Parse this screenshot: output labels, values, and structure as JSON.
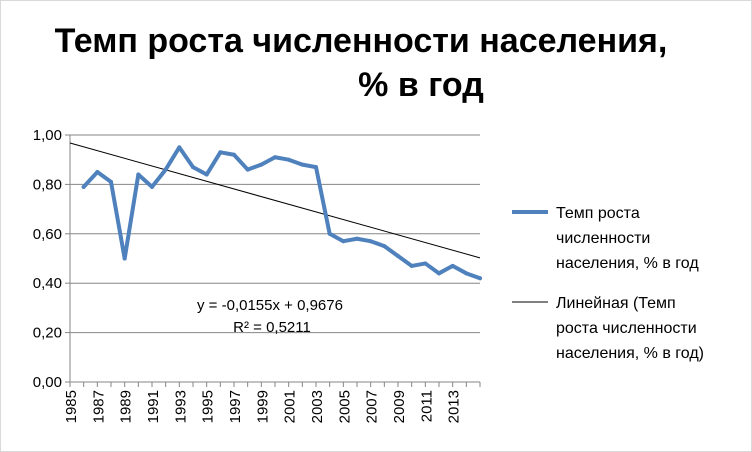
{
  "chart_data": {
    "type": "line",
    "title_line1": "Темп роста численности населения,",
    "title_line2": "% в год",
    "x": [
      1986,
      1987,
      1988,
      1989,
      1990,
      1991,
      1992,
      1993,
      1994,
      1995,
      1996,
      1997,
      1998,
      1999,
      2000,
      2001,
      2002,
      2003,
      2004,
      2005,
      2006,
      2007,
      2008,
      2009,
      2010,
      2011,
      2012,
      2013,
      2014,
      2015
    ],
    "series": [
      {
        "name": "Темп роста численности населения, % в год",
        "legend_lines": [
          "Темп роста",
          "численности",
          "населения, % в год"
        ],
        "color": "#4F81BD",
        "values": [
          0.79,
          0.85,
          0.81,
          0.5,
          0.84,
          0.79,
          0.86,
          0.95,
          0.87,
          0.84,
          0.93,
          0.92,
          0.86,
          0.88,
          0.91,
          0.9,
          0.88,
          0.87,
          0.6,
          0.57,
          0.58,
          0.57,
          0.55,
          0.51,
          0.47,
          0.48,
          0.44,
          0.47,
          0.44,
          0.42
        ]
      }
    ],
    "trendline": {
      "name": "Линейная (Темп роста численности населения, % в год)",
      "legend_lines": [
        "Линейная (Темп",
        "роста численности",
        "населения, % в год)"
      ],
      "color": "#000000",
      "slope": -0.0155,
      "intercept": 0.9676,
      "equation": "y = -0,0155x + 0,9676",
      "r_squared": "R² = 0,5211"
    },
    "y_ticks": [
      "0,00",
      "0,20",
      "0,40",
      "0,60",
      "0,80",
      "1,00"
    ],
    "y_tick_values": [
      0,
      0.2,
      0.4,
      0.6,
      0.8,
      1.0
    ],
    "x_ticks": [
      "1985",
      "1987",
      "1989",
      "1991",
      "1993",
      "1995",
      "1997",
      "1999",
      "2001",
      "2003",
      "2005",
      "2007",
      "2009",
      "2011",
      "2013"
    ],
    "x_tick_values": [
      1985,
      1987,
      1989,
      1991,
      1993,
      1995,
      1997,
      1999,
      2001,
      2003,
      2005,
      2007,
      2009,
      2011,
      2013
    ],
    "xlim": [
      1985,
      2015
    ],
    "ylim": [
      0,
      1.0
    ],
    "grid": true,
    "legend": "right"
  }
}
